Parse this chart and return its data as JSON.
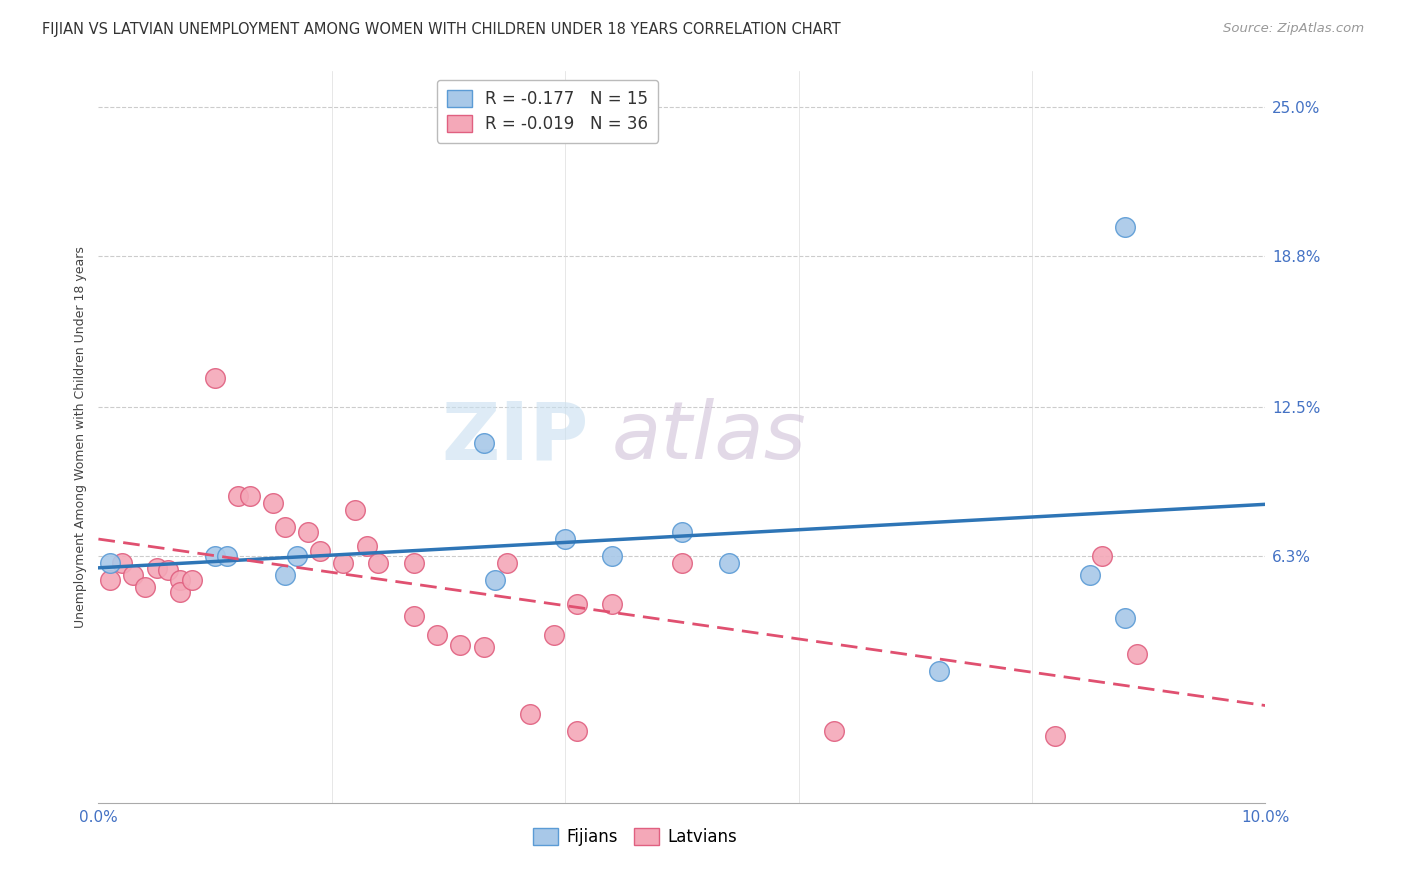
{
  "title": "FIJIAN VS LATVIAN UNEMPLOYMENT AMONG WOMEN WITH CHILDREN UNDER 18 YEARS CORRELATION CHART",
  "source": "Source: ZipAtlas.com",
  "ylabel": "Unemployment Among Women with Children Under 18 years",
  "xlim": [
    0.0,
    0.1
  ],
  "ylim": [
    -0.04,
    0.265
  ],
  "xticks": [
    0.0,
    0.02,
    0.04,
    0.06,
    0.08,
    0.1
  ],
  "xticklabels": [
    "0.0%",
    "",
    "",
    "",
    "",
    "10.0%"
  ],
  "ytick_positions": [
    0.063,
    0.125,
    0.188,
    0.25
  ],
  "ytick_labels": [
    "6.3%",
    "12.5%",
    "18.8%",
    "25.0%"
  ],
  "fijian_color": "#A8C8E8",
  "latvian_color": "#F4A8B8",
  "fijian_edge_color": "#5B9BD5",
  "latvian_edge_color": "#E06080",
  "fijian_line_color": "#2E75B6",
  "latvian_line_color": "#E05070",
  "background_color": "#FFFFFF",
  "grid_color": "#CCCCCC",
  "watermark_zip": "ZIP",
  "watermark_atlas": "atlas",
  "fijian_x": [
    0.001,
    0.01,
    0.011,
    0.016,
    0.017,
    0.033,
    0.034,
    0.04,
    0.044,
    0.05,
    0.054,
    0.072,
    0.085,
    0.088,
    0.088
  ],
  "fijian_y": [
    0.06,
    0.063,
    0.063,
    0.055,
    0.063,
    0.11,
    0.053,
    0.07,
    0.063,
    0.073,
    0.06,
    0.015,
    0.055,
    0.037,
    0.2
  ],
  "latvian_x": [
    0.001,
    0.002,
    0.003,
    0.004,
    0.005,
    0.006,
    0.007,
    0.007,
    0.008,
    0.01,
    0.012,
    0.013,
    0.015,
    0.016,
    0.018,
    0.019,
    0.021,
    0.022,
    0.023,
    0.024,
    0.027,
    0.027,
    0.029,
    0.031,
    0.033,
    0.035,
    0.037,
    0.039,
    0.041,
    0.041,
    0.044,
    0.05,
    0.063,
    0.082,
    0.086,
    0.089
  ],
  "latvian_y": [
    0.053,
    0.06,
    0.055,
    0.05,
    0.058,
    0.057,
    0.053,
    0.048,
    0.053,
    0.137,
    0.088,
    0.088,
    0.085,
    0.075,
    0.073,
    0.065,
    0.06,
    0.082,
    0.067,
    0.06,
    0.06,
    0.038,
    0.03,
    0.026,
    0.025,
    0.06,
    -0.003,
    0.03,
    -0.01,
    0.043,
    0.043,
    0.06,
    -0.01,
    -0.012,
    0.063,
    0.022
  ],
  "title_fontsize": 10.5,
  "source_fontsize": 9.5,
  "axis_label_fontsize": 9,
  "tick_fontsize": 11,
  "legend_fontsize": 12,
  "tick_color": "#4472C4"
}
